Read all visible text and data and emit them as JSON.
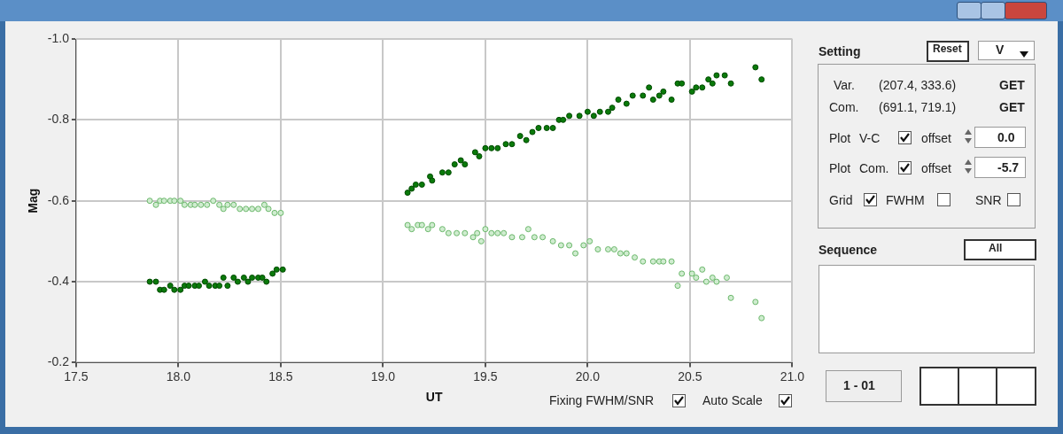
{
  "chart_data": {
    "type": "scatter",
    "xlabel": "UT",
    "ylabel": "Mag",
    "xlim": [
      17.5,
      21.0
    ],
    "xticks": [
      {
        "value": 17.5,
        "label": "17.5"
      },
      {
        "value": 18,
        "label": "18.0"
      },
      {
        "value": 18.5,
        "label": "18.5"
      },
      {
        "value": 19,
        "label": "19.0"
      },
      {
        "value": 19.5,
        "label": "19.5"
      },
      {
        "value": 20,
        "label": "20.0"
      },
      {
        "value": 20.5,
        "label": "20.5"
      },
      {
        "value": 21,
        "label": "21.0"
      }
    ],
    "ylim": [
      -0.2,
      -1.0
    ],
    "yticks": [
      {
        "value": -1,
        "label": "-1.0"
      },
      {
        "value": -0.8,
        "label": "-0.8"
      },
      {
        "value": -0.6,
        "label": "-0.6"
      },
      {
        "value": -0.4,
        "label": "-0.4"
      },
      {
        "value": -0.2,
        "label": "-0.2"
      }
    ],
    "grid": true,
    "legend": false,
    "marker": "circle",
    "series": [
      {
        "color": "#0a7a0a",
        "x": [
          17.86,
          17.89,
          17.91,
          17.93,
          17.96,
          17.98,
          18.01,
          18.03,
          18.05,
          18.08,
          18.1,
          18.13,
          18.15,
          18.18,
          18.2,
          18.22,
          18.24,
          18.27,
          18.29,
          18.32,
          18.34,
          18.36,
          18.39,
          18.41,
          18.43,
          18.46,
          18.48,
          18.51,
          19.12,
          19.14,
          19.16,
          19.19,
          19.23,
          19.24,
          19.29,
          19.32,
          19.35,
          19.38,
          19.4,
          19.45,
          19.47,
          19.5,
          19.53,
          19.56,
          19.6,
          19.63,
          19.67,
          19.7,
          19.73,
          19.76,
          19.8,
          19.83,
          19.86,
          19.88,
          19.91,
          19.96,
          20.0,
          20.03,
          20.06,
          20.1,
          20.12,
          20.15,
          20.19,
          20.22,
          20.27,
          20.3,
          20.32,
          20.35,
          20.37,
          20.41,
          20.44,
          20.46,
          20.51,
          20.53,
          20.56,
          20.59,
          20.61,
          20.63,
          20.67,
          20.7,
          20.82,
          20.85
        ],
        "values": [
          -0.4,
          -0.4,
          -0.38,
          -0.38,
          -0.39,
          -0.38,
          -0.38,
          -0.39,
          -0.39,
          -0.39,
          -0.39,
          -0.4,
          -0.39,
          -0.39,
          -0.39,
          -0.41,
          -0.39,
          -0.41,
          -0.4,
          -0.41,
          -0.4,
          -0.41,
          -0.41,
          -0.41,
          -0.4,
          -0.42,
          -0.43,
          -0.43,
          -0.62,
          -0.63,
          -0.64,
          -0.64,
          -0.66,
          -0.65,
          -0.67,
          -0.67,
          -0.69,
          -0.7,
          -0.69,
          -0.72,
          -0.71,
          -0.73,
          -0.73,
          -0.73,
          -0.74,
          -0.74,
          -0.76,
          -0.75,
          -0.77,
          -0.78,
          -0.78,
          -0.78,
          -0.8,
          -0.8,
          -0.81,
          -0.81,
          -0.82,
          -0.81,
          -0.82,
          -0.82,
          -0.83,
          -0.85,
          -0.84,
          -0.86,
          -0.86,
          -0.88,
          -0.85,
          -0.86,
          -0.87,
          -0.85,
          -0.89,
          -0.89,
          -0.87,
          -0.88,
          -0.88,
          -0.9,
          -0.89,
          -0.91,
          -0.91,
          -0.89,
          -0.93,
          -0.9
        ]
      },
      {
        "color": "#6cb86c",
        "x": [
          17.86,
          17.89,
          17.91,
          17.93,
          17.96,
          17.98,
          18.01,
          18.03,
          18.06,
          18.08,
          18.11,
          18.14,
          18.17,
          18.2,
          18.22,
          18.24,
          18.27,
          18.3,
          18.33,
          18.36,
          18.39,
          18.42,
          18.44,
          18.47,
          18.5,
          19.12,
          19.14,
          19.17,
          19.19,
          19.22,
          19.24,
          19.29,
          19.32,
          19.36,
          19.4,
          19.44,
          19.46,
          19.48,
          19.5,
          19.53,
          19.56,
          19.59,
          19.63,
          19.68,
          19.71,
          19.74,
          19.78,
          19.83,
          19.87,
          19.91,
          19.94,
          19.98,
          20.01,
          20.05,
          20.1,
          20.13,
          20.16,
          20.19,
          20.23,
          20.27,
          20.32,
          20.35,
          20.37,
          20.41,
          20.44,
          20.46,
          20.51,
          20.53,
          20.56,
          20.58,
          20.61,
          20.63,
          20.68,
          20.7,
          20.82,
          20.85
        ],
        "values": [
          -0.6,
          -0.59,
          -0.6,
          -0.6,
          -0.6,
          -0.6,
          -0.6,
          -0.59,
          -0.59,
          -0.59,
          -0.59,
          -0.59,
          -0.6,
          -0.59,
          -0.58,
          -0.59,
          -0.59,
          -0.58,
          -0.58,
          -0.58,
          -0.58,
          -0.59,
          -0.58,
          -0.57,
          -0.57,
          -0.54,
          -0.53,
          -0.54,
          -0.54,
          -0.53,
          -0.54,
          -0.53,
          -0.52,
          -0.52,
          -0.52,
          -0.51,
          -0.52,
          -0.5,
          -0.53,
          -0.52,
          -0.52,
          -0.52,
          -0.51,
          -0.51,
          -0.53,
          -0.51,
          -0.51,
          -0.5,
          -0.49,
          -0.49,
          -0.47,
          -0.49,
          -0.5,
          -0.48,
          -0.48,
          -0.48,
          -0.47,
          -0.47,
          -0.46,
          -0.45,
          -0.45,
          -0.45,
          -0.45,
          -0.45,
          -0.39,
          -0.42,
          -0.42,
          -0.41,
          -0.43,
          -0.4,
          -0.41,
          -0.4,
          -0.41,
          -0.36,
          -0.35,
          -0.31
        ]
      }
    ],
    "annotations": [
      "Setting",
      "Reset",
      "V",
      "Var.",
      "(207.4, 333.6)",
      "GET",
      "Com.",
      "(691.1, 719.1)",
      "GET",
      "Plot",
      "V-C",
      "offset",
      "0.0",
      "Plot",
      "Com.",
      "offset",
      "-5.7",
      "Grid",
      "FWHM",
      "SNR",
      "Sequence",
      "All",
      "1 - 01",
      "Fixing FWHM/SNR",
      "Auto Scale"
    ]
  }
}
